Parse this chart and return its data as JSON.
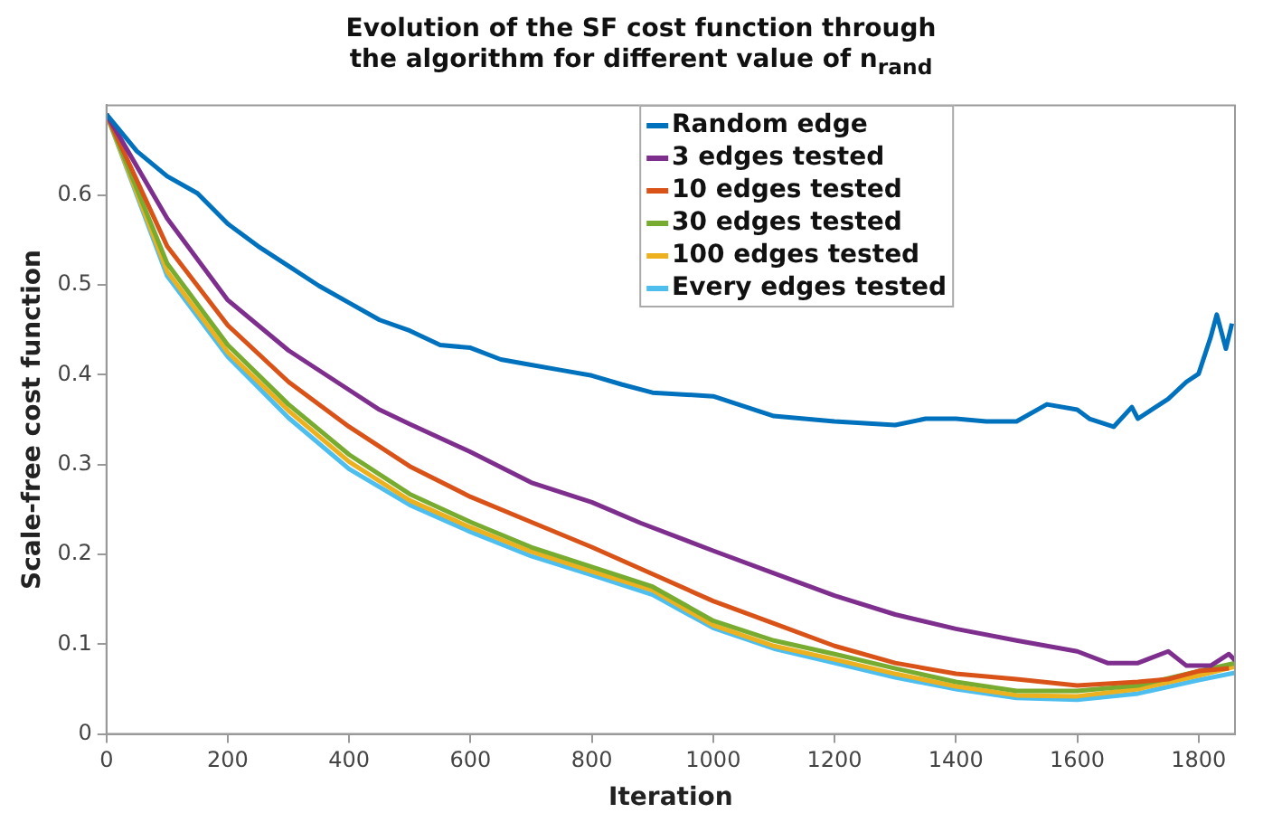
{
  "chart_data": {
    "type": "line",
    "title": "Evolution of the SF cost function through the algorithm for different value of n$_{rand}$",
    "xlabel": "Iteration",
    "ylabel": "Scale-free cost function",
    "xlim": [
      0,
      1860
    ],
    "ylim": [
      0,
      0.7
    ],
    "xticks": [
      0,
      200,
      400,
      600,
      800,
      1000,
      1200,
      1400,
      1600,
      1800
    ],
    "yticks": [
      0,
      0.1,
      0.2,
      0.3,
      0.4,
      0.5,
      0.6
    ],
    "grid": false,
    "legend": "top",
    "marker": "none",
    "line_style": "solid",
    "series": [
      {
        "name": "Random edge",
        "color": "#0072bd",
        "x": [
          0,
          50,
          100,
          150,
          200,
          250,
          300,
          350,
          400,
          450,
          500,
          550,
          600,
          650,
          700,
          750,
          800,
          850,
          900,
          1000,
          1100,
          1200,
          1300,
          1350,
          1400,
          1450,
          1500,
          1550,
          1600,
          1620,
          1660,
          1690,
          1700,
          1750,
          1780,
          1800,
          1820,
          1830,
          1845,
          1855
        ],
        "values": [
          0.69,
          0.649,
          0.621,
          0.602,
          0.568,
          0.543,
          0.521,
          0.499,
          0.48,
          0.461,
          0.449,
          0.433,
          0.43,
          0.417,
          0.411,
          0.405,
          0.399,
          0.389,
          0.38,
          0.376,
          0.354,
          0.348,
          0.344,
          0.351,
          0.351,
          0.348,
          0.348,
          0.367,
          0.361,
          0.351,
          0.342,
          0.364,
          0.351,
          0.373,
          0.392,
          0.401,
          0.442,
          0.467,
          0.429,
          0.457
        ]
      },
      {
        "name": "3 edges tested",
        "color": "#7e2f8e",
        "x": [
          0,
          100,
          200,
          300,
          400,
          450,
          500,
          600,
          700,
          800,
          880,
          1000,
          1100,
          1200,
          1300,
          1400,
          1500,
          1600,
          1650,
          1700,
          1750,
          1780,
          1820,
          1850,
          1860
        ],
        "values": [
          0.69,
          0.574,
          0.483,
          0.427,
          0.383,
          0.361,
          0.345,
          0.314,
          0.28,
          0.258,
          0.235,
          0.204,
          0.179,
          0.154,
          0.133,
          0.117,
          0.104,
          0.092,
          0.079,
          0.079,
          0.092,
          0.076,
          0.076,
          0.089,
          0.082
        ]
      },
      {
        "name": "10 edges tested",
        "color": "#d95319",
        "x": [
          0,
          100,
          200,
          300,
          400,
          500,
          600,
          700,
          800,
          900,
          1000,
          1100,
          1200,
          1300,
          1400,
          1500,
          1600,
          1700,
          1750,
          1800,
          1850
        ],
        "values": [
          0.69,
          0.543,
          0.455,
          0.392,
          0.342,
          0.298,
          0.264,
          0.236,
          0.208,
          0.178,
          0.148,
          0.123,
          0.098,
          0.079,
          0.067,
          0.061,
          0.054,
          0.058,
          0.061,
          0.07,
          0.073
        ]
      },
      {
        "name": "30 edges tested",
        "color": "#77ac30",
        "x": [
          0,
          100,
          200,
          300,
          400,
          500,
          600,
          700,
          800,
          900,
          1000,
          1100,
          1200,
          1300,
          1400,
          1500,
          1600,
          1700,
          1800,
          1860
        ],
        "values": [
          0.69,
          0.524,
          0.433,
          0.367,
          0.311,
          0.267,
          0.236,
          0.208,
          0.186,
          0.164,
          0.126,
          0.104,
          0.089,
          0.073,
          0.058,
          0.048,
          0.048,
          0.054,
          0.07,
          0.079
        ]
      },
      {
        "name": "100 edges tested",
        "color": "#edb120",
        "x": [
          0,
          100,
          200,
          300,
          400,
          500,
          600,
          700,
          800,
          900,
          1000,
          1100,
          1200,
          1300,
          1400,
          1500,
          1600,
          1700,
          1800,
          1860
        ],
        "values": [
          0.69,
          0.515,
          0.425,
          0.36,
          0.303,
          0.26,
          0.23,
          0.203,
          0.181,
          0.16,
          0.121,
          0.098,
          0.083,
          0.067,
          0.053,
          0.043,
          0.042,
          0.05,
          0.065,
          0.075
        ]
      },
      {
        "name": "Every edges tested",
        "color": "#4dbeee",
        "x": [
          0,
          100,
          200,
          300,
          400,
          500,
          600,
          700,
          800,
          900,
          1000,
          1100,
          1200,
          1300,
          1400,
          1500,
          1600,
          1700,
          1800,
          1860
        ],
        "values": [
          0.69,
          0.51,
          0.42,
          0.352,
          0.295,
          0.255,
          0.225,
          0.198,
          0.177,
          0.155,
          0.118,
          0.095,
          0.079,
          0.063,
          0.05,
          0.04,
          0.038,
          0.045,
          0.06,
          0.068
        ]
      }
    ]
  }
}
